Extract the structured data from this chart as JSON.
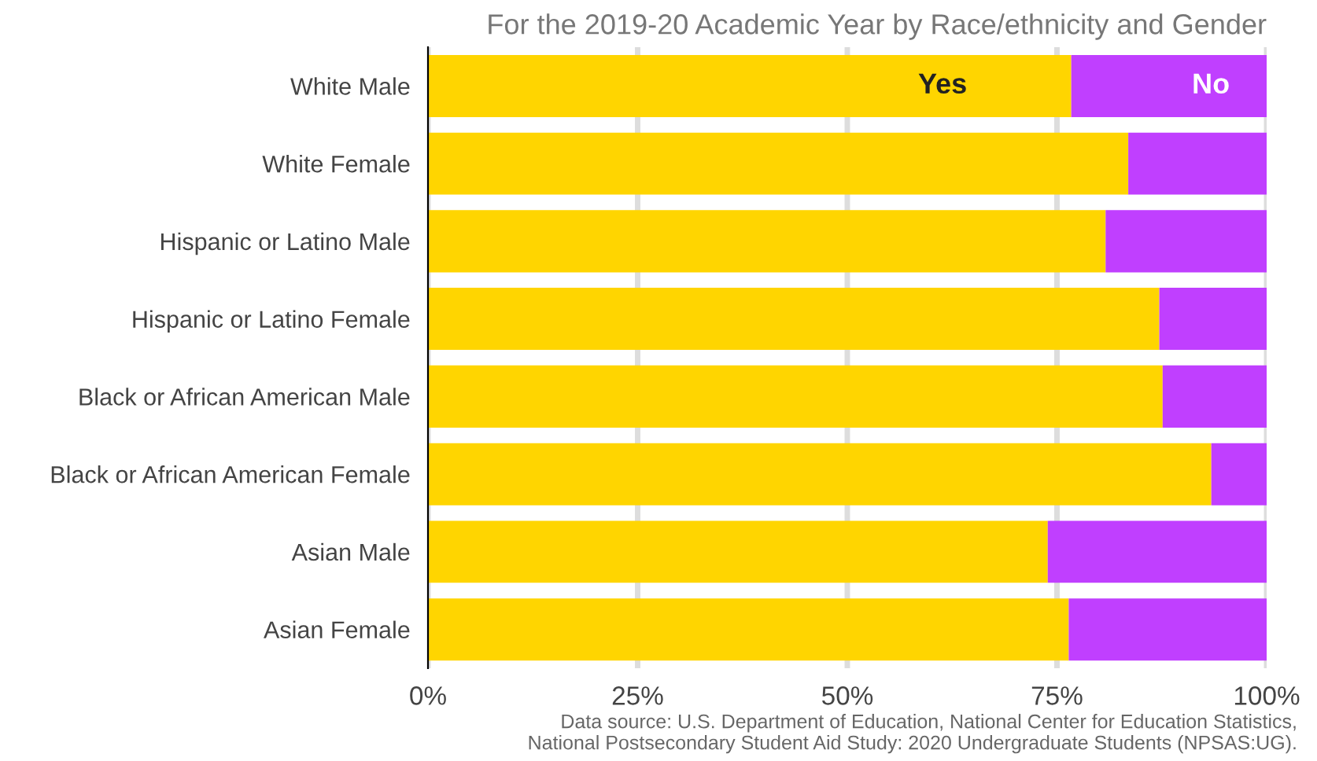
{
  "chart_data": {
    "type": "bar",
    "orientation": "horizontal",
    "stacked": true,
    "title": "For the 2019-20 Academic Year by Race/ethnicity and Gender",
    "categories": [
      "White Male",
      "White Female",
      "Hispanic or Latino Male",
      "Hispanic or Latino Female",
      "Black or African American Male",
      "Black or African American Female",
      "Asian Male",
      "Asian Female"
    ],
    "series": [
      {
        "name": "Yes",
        "color": "#ffd500",
        "values": [
          76.7,
          83.5,
          80.8,
          87.2,
          87.6,
          93.4,
          73.9,
          76.4
        ]
      },
      {
        "name": "No",
        "color": "#c03fff",
        "values": [
          23.3,
          16.5,
          19.2,
          12.8,
          12.4,
          6.6,
          26.1,
          23.6
        ]
      }
    ],
    "xlim": [
      0,
      100
    ],
    "xticks": [
      {
        "value": 0,
        "label": "0%"
      },
      {
        "value": 25,
        "label": "25%"
      },
      {
        "value": 50,
        "label": "50%"
      },
      {
        "value": 75,
        "label": "75%"
      },
      {
        "value": 100,
        "label": "100%"
      }
    ],
    "grid": "x",
    "legend": false,
    "annotations": [
      "Data source: U.S. Department of Education, National Center for Education Statistics,\nNational Postsecondary Student Aid Study: 2020 Undergraduate Students (NPSAS:UG)."
    ]
  }
}
